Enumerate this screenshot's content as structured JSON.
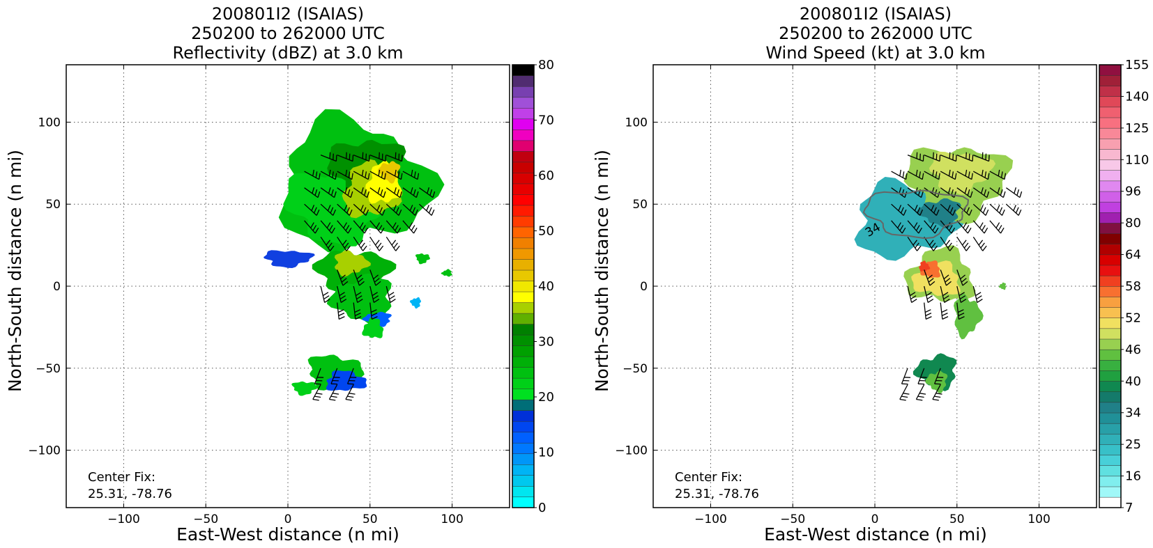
{
  "panels": [
    {
      "title_lines": [
        "200801I2 (ISAIAS)",
        "250200 to 262000 UTC",
        "Reflectivity (dBZ) at 3.0 km"
      ],
      "xlabel": "East-West distance (n mi)",
      "ylabel": "North-South distance (n mi)",
      "center_fix_label": "Center Fix:",
      "center_fix_value": "25.31, -78.76",
      "colorbar": {
        "tick_labels": [
          "80",
          "70",
          "60",
          "50",
          "40",
          "30",
          "20",
          "10",
          "0"
        ],
        "colors": [
          "#00ffff",
          "#00e6f0",
          "#00c8ee",
          "#00b4f5",
          "#0096f8",
          "#0078ff",
          "#0060ff",
          "#0046f0",
          "#0030d8",
          "#006e78",
          "#00e020",
          "#00d018",
          "#00c010",
          "#00b008",
          "#00a000",
          "#009000",
          "#008000",
          "#60b000",
          "#a8d000",
          "#ffff00",
          "#f0e800",
          "#e8c800",
          "#e8b000",
          "#f09800",
          "#f08000",
          "#ff6400",
          "#ff3c00",
          "#ff1a00",
          "#ff0000",
          "#e80000",
          "#d80000",
          "#c80000",
          "#c00010",
          "#e00070",
          "#f000c0",
          "#e000f0",
          "#c040e8",
          "#a050d8",
          "#7840b0",
          "#502c70",
          "#000000"
        ]
      }
    },
    {
      "title_lines": [
        "200801I2 (ISAIAS)",
        "250200 to 262000 UTC",
        "Wind Speed (kt) at 3.0 km"
      ],
      "xlabel": "East-West distance (n mi)",
      "ylabel": "North-South distance (n mi)",
      "center_fix_label": "Center Fix:",
      "center_fix_value": "25.31, -78.76",
      "contour_label": "34",
      "colorbar": {
        "tick_labels": [
          "155",
          "140",
          "125",
          "110",
          "96",
          "80",
          "64",
          "58",
          "52",
          "46",
          "40",
          "34",
          "25",
          "16",
          "7"
        ],
        "colors": [
          "#ffffff",
          "#a0f8f8",
          "#80eeee",
          "#60e0e0",
          "#48d0d8",
          "#38c0c8",
          "#30b0b8",
          "#28a0a8",
          "#209098",
          "#208088",
          "#147a6a",
          "#108850",
          "#20a040",
          "#38b040",
          "#60c040",
          "#98d050",
          "#d0e060",
          "#f0e060",
          "#f8c050",
          "#f8a040",
          "#f87030",
          "#f04020",
          "#e81010",
          "#d80000",
          "#b00000",
          "#800000",
          "#801040",
          "#a020b0",
          "#c040e0",
          "#d060e8",
          "#e088f0",
          "#f0b0f0",
          "#f8c8e8",
          "#f8b8d0",
          "#f8a0b0",
          "#f88898",
          "#f87080",
          "#f06070",
          "#e04858",
          "#c03048",
          "#a02038",
          "#901040"
        ]
      }
    }
  ],
  "chart_data": [
    {
      "type": "heatmap",
      "title": "200801I2 (ISAIAS) 250200 to 262000 UTC Reflectivity (dBZ) at 3.0 km",
      "xlabel": "East-West distance (n mi)",
      "ylabel": "North-South distance (n mi)",
      "xlim": [
        -135,
        135
      ],
      "ylim": [
        -135,
        135
      ],
      "xticks": [
        -100,
        -50,
        0,
        50,
        100
      ],
      "yticks": [
        -100,
        -50,
        0,
        50,
        100
      ],
      "grid": true,
      "colorbar_range": [
        0,
        80
      ],
      "colorbar_ticks": [
        0,
        10,
        20,
        30,
        40,
        50,
        60,
        70,
        80
      ],
      "center_fix": [
        25.31,
        -78.76
      ]
    },
    {
      "type": "heatmap",
      "title": "200801I2 (ISAIAS) 250200 to 262000 UTC Wind Speed (kt) at 3.0 km",
      "xlabel": "East-West distance (n mi)",
      "ylabel": "North-South distance (n mi)",
      "xlim": [
        -135,
        135
      ],
      "ylim": [
        -135,
        135
      ],
      "xticks": [
        -100,
        -50,
        0,
        50,
        100
      ],
      "yticks": [
        -100,
        -50,
        0,
        50,
        100
      ],
      "grid": true,
      "colorbar_ticks": [
        7,
        16,
        25,
        34,
        40,
        46,
        52,
        58,
        64,
        80,
        96,
        110,
        125,
        140,
        155
      ],
      "contour_value": 34,
      "center_fix": [
        25.31,
        -78.76
      ]
    }
  ]
}
